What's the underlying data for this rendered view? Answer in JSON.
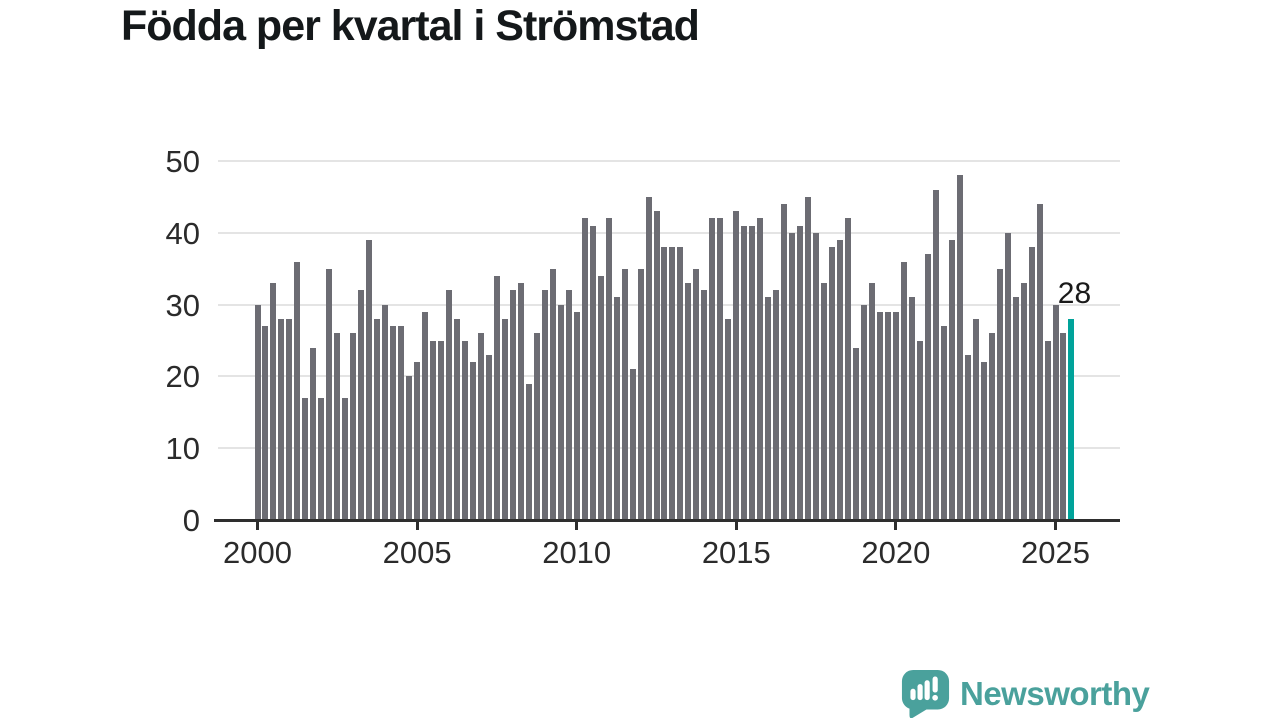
{
  "title": "Födda per kvartal i Strömstad",
  "annotation": {
    "label": "28"
  },
  "branding": {
    "name": "Newsworthy",
    "icon": "speech-bubble-bar-chart-icon"
  },
  "colors": {
    "bar": "#6c6c73",
    "highlight": "#00a39a",
    "title": "#14181a",
    "axis_text": "#2b2b2b",
    "gridline": "#e4e4e4",
    "axis_line": "#2e2e2e",
    "background": "#ffffff",
    "brand": "#4aa19c",
    "annotation_text": "#1a1a1a"
  },
  "chart_data": {
    "type": "bar",
    "title": "Födda per kvartal i Strömstad",
    "xlabel": "",
    "ylabel": "",
    "x_tick_labels": [
      "2000",
      "2005",
      "2010",
      "2015",
      "2020",
      "2025"
    ],
    "y_ticks": [
      0,
      10,
      20,
      30,
      40,
      50
    ],
    "ylim": [
      0,
      50
    ],
    "grid": true,
    "legend": false,
    "bars_per_year": 4,
    "first_bar_quarter": "2000 Q1",
    "last_bar_quarter": "2025 Q3",
    "values": [
      30,
      27,
      33,
      28,
      28,
      36,
      17,
      24,
      17,
      35,
      26,
      17,
      26,
      32,
      39,
      28,
      30,
      27,
      27,
      20,
      22,
      29,
      25,
      25,
      32,
      28,
      25,
      22,
      26,
      23,
      34,
      28,
      32,
      33,
      19,
      26,
      32,
      35,
      30,
      32,
      29,
      42,
      41,
      34,
      42,
      31,
      35,
      21,
      35,
      45,
      43,
      38,
      38,
      38,
      33,
      35,
      32,
      42,
      42,
      28,
      43,
      41,
      41,
      42,
      31,
      32,
      44,
      40,
      41,
      45,
      40,
      33,
      38,
      39,
      42,
      24,
      30,
      33,
      29,
      29,
      29,
      36,
      31,
      25,
      37,
      46,
      27,
      39,
      48,
      23,
      28,
      22,
      26,
      35,
      40,
      31,
      33,
      38,
      44,
      25,
      30,
      26,
      28
    ],
    "highlight_last_bar": {
      "value": 28,
      "label": "28"
    }
  }
}
